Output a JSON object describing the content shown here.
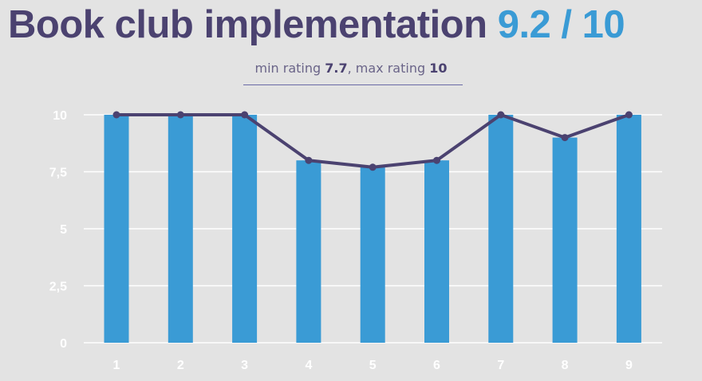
{
  "header": {
    "title": "Book club implementation",
    "score": "9.2 / 10"
  },
  "summary": {
    "min_label": "min rating",
    "min_value": "7.7",
    "separator": ",",
    "max_label": "max rating",
    "max_value": "10"
  },
  "colors": {
    "bar": "#3a9bd5",
    "line": "#4b4270",
    "title": "#4b4270",
    "score": "#3a9bd5",
    "background": "#e3e3e3"
  },
  "chart_data": {
    "type": "bar",
    "categories": [
      "1",
      "2",
      "3",
      "4",
      "5",
      "6",
      "7",
      "8",
      "9"
    ],
    "values": [
      10,
      10,
      10,
      8,
      7.7,
      8,
      10,
      9,
      10
    ],
    "series": [
      {
        "type": "bar",
        "values": [
          10,
          10,
          10,
          8,
          7.7,
          8,
          10,
          9,
          10
        ]
      },
      {
        "type": "line",
        "values": [
          10,
          10,
          10,
          8,
          7.7,
          8,
          10,
          9,
          10
        ]
      }
    ],
    "ylim": [
      0,
      10
    ],
    "yticks": [
      "0",
      "2,5",
      "5",
      "7,5",
      "10"
    ],
    "grid": true
  }
}
